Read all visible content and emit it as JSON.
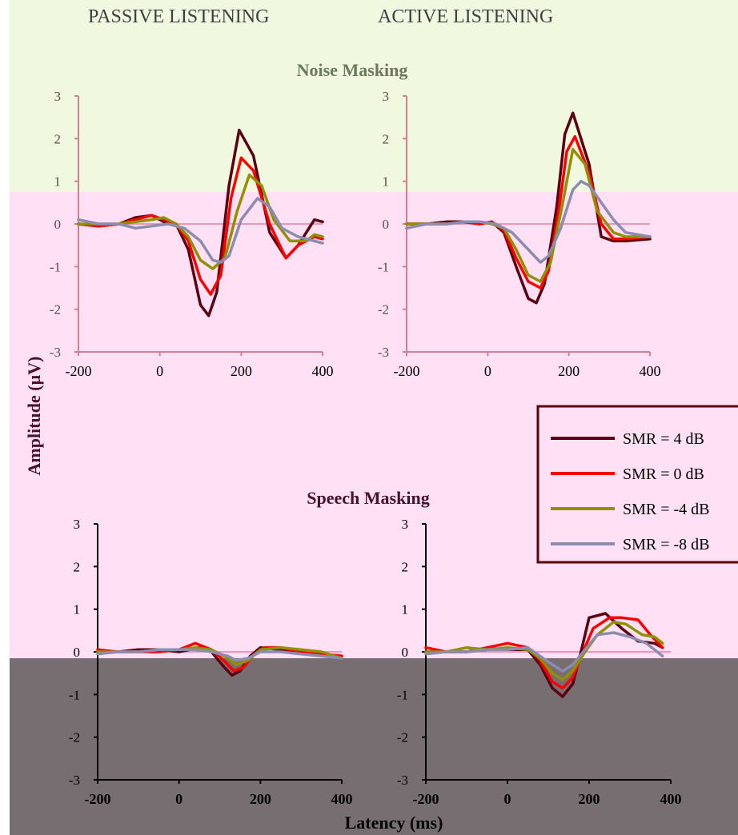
{
  "headers": {
    "passive": "PASSIVE LISTENING",
    "active": "ACTIVE LISTENING"
  },
  "axis": {
    "ylabel": "Amplitude (µV)",
    "xlabel": "Latency (ms)"
  },
  "colors": {
    "band_top": "#f0f8e0",
    "band_mid": "#ffe0f4",
    "band_bottom": "#776e72",
    "zero_line": "#e080a0"
  },
  "legend": {
    "entries": [
      {
        "label": "SMR = 4 dB",
        "color": "#5a0010"
      },
      {
        "label": "SMR = 0 dB",
        "color": "#ff0000"
      },
      {
        "label": "SMR = -4 dB",
        "color": "#909000"
      },
      {
        "label": "SMR = -8 dB",
        "color": "#8c8cb0"
      }
    ]
  },
  "chart_data": [
    {
      "type": "line",
      "title": "Noise Masking",
      "panel": "PASSIVE LISTENING",
      "xlim": [
        -200,
        400
      ],
      "ylim": [
        -3,
        3
      ],
      "xticks": [
        -200,
        0,
        200,
        400
      ],
      "yticks": [
        -3,
        -2,
        -1,
        0,
        1,
        2,
        3
      ],
      "series": [
        {
          "name": "SMR = 4 dB",
          "color": "#5a0010",
          "x": [
            -200,
            -150,
            -100,
            -60,
            -20,
            10,
            40,
            70,
            100,
            120,
            140,
            170,
            195,
            230,
            270,
            310,
            340,
            380,
            400
          ],
          "y": [
            0,
            -0.05,
            0,
            0.15,
            0.2,
            0.05,
            0,
            -0.6,
            -1.9,
            -2.15,
            -1.6,
            0.9,
            2.2,
            1.6,
            -0.2,
            -0.8,
            -0.5,
            0.1,
            0.05
          ]
        },
        {
          "name": "SMR = 0 dB",
          "color": "#ff0000",
          "x": [
            -200,
            -150,
            -100,
            -60,
            -20,
            10,
            40,
            70,
            100,
            125,
            150,
            175,
            200,
            230,
            270,
            310,
            340,
            380,
            400
          ],
          "y": [
            0,
            -0.05,
            0,
            0.1,
            0.2,
            0.1,
            0,
            -0.4,
            -1.3,
            -1.65,
            -1.2,
            0.6,
            1.55,
            1.25,
            0,
            -0.8,
            -0.5,
            -0.3,
            -0.35
          ]
        },
        {
          "name": "SMR = -4 dB",
          "color": "#909000",
          "x": [
            -200,
            -150,
            -100,
            -60,
            -20,
            10,
            40,
            70,
            100,
            130,
            160,
            190,
            220,
            250,
            280,
            320,
            360,
            380,
            400
          ],
          "y": [
            0,
            0,
            0,
            0.05,
            0.1,
            0.15,
            0,
            -0.3,
            -0.85,
            -1.05,
            -0.8,
            0.3,
            1.15,
            0.9,
            0.1,
            -0.4,
            -0.4,
            -0.25,
            -0.3
          ]
        },
        {
          "name": "SMR = -8 dB",
          "color": "#8c8cb0",
          "x": [
            -200,
            -150,
            -100,
            -60,
            -20,
            20,
            60,
            100,
            130,
            150,
            170,
            200,
            240,
            270,
            300,
            340,
            380,
            400
          ],
          "y": [
            0.1,
            0,
            0,
            -0.1,
            -0.05,
            0,
            -0.1,
            -0.4,
            -0.85,
            -0.9,
            -0.75,
            0.1,
            0.6,
            0.4,
            -0.1,
            -0.3,
            -0.4,
            -0.45
          ]
        }
      ]
    },
    {
      "type": "line",
      "title": "Noise Masking",
      "panel": "ACTIVE LISTENING",
      "xlim": [
        -200,
        400
      ],
      "ylim": [
        -3,
        3
      ],
      "xticks": [
        -200,
        0,
        200,
        400
      ],
      "yticks": [
        -3,
        -2,
        -1,
        0,
        1,
        2,
        3
      ],
      "series": [
        {
          "name": "SMR = 4 dB",
          "color": "#5a0010",
          "x": [
            -200,
            -150,
            -100,
            -60,
            -20,
            10,
            40,
            70,
            100,
            120,
            140,
            170,
            190,
            210,
            250,
            280,
            310,
            340,
            400
          ],
          "y": [
            0,
            0,
            0.05,
            0.05,
            0,
            0.05,
            -0.2,
            -1,
            -1.75,
            -1.85,
            -1.4,
            0.4,
            2.1,
            2.6,
            1.4,
            -0.3,
            -0.4,
            -0.4,
            -0.35
          ]
        },
        {
          "name": "SMR = 0 dB",
          "color": "#ff0000",
          "x": [
            -200,
            -150,
            -100,
            -60,
            -20,
            10,
            40,
            70,
            100,
            130,
            150,
            175,
            195,
            215,
            250,
            280,
            310,
            340,
            400
          ],
          "y": [
            0,
            0,
            0,
            0.05,
            0,
            0.05,
            -0.15,
            -0.8,
            -1.35,
            -1.5,
            -1.1,
            0.3,
            1.7,
            2.05,
            1.2,
            0,
            -0.35,
            -0.35,
            -0.3
          ]
        },
        {
          "name": "SMR = -4 dB",
          "color": "#909000",
          "x": [
            -200,
            -150,
            -100,
            -60,
            -20,
            10,
            40,
            70,
            100,
            130,
            155,
            185,
            210,
            240,
            270,
            310,
            340,
            400
          ],
          "y": [
            0,
            0,
            0,
            0.05,
            0.05,
            0,
            -0.1,
            -0.6,
            -1.2,
            -1.35,
            -0.9,
            0.5,
            1.75,
            1.4,
            0.3,
            -0.2,
            -0.3,
            -0.3
          ]
        },
        {
          "name": "SMR = -8 dB",
          "color": "#8c8cb0",
          "x": [
            -200,
            -150,
            -100,
            -60,
            -20,
            20,
            60,
            100,
            130,
            150,
            180,
            210,
            230,
            250,
            280,
            310,
            340,
            400
          ],
          "y": [
            -0.1,
            0,
            0,
            0.05,
            0.05,
            0,
            -0.2,
            -0.6,
            -0.9,
            -0.75,
            -0.1,
            0.8,
            1.0,
            0.9,
            0.5,
            0.1,
            -0.2,
            -0.3
          ]
        }
      ]
    },
    {
      "type": "line",
      "title": "Speech Masking",
      "panel": "PASSIVE LISTENING",
      "xlim": [
        -200,
        400
      ],
      "ylim": [
        -3,
        3
      ],
      "xticks": [
        -200,
        0,
        200,
        400
      ],
      "yticks": [
        -3,
        -2,
        -1,
        0,
        1,
        2,
        3
      ],
      "series": [
        {
          "name": "SMR = 4 dB",
          "color": "#5a0010",
          "x": [
            -200,
            -150,
            -100,
            -50,
            0,
            50,
            80,
            110,
            130,
            150,
            175,
            200,
            250,
            300,
            350,
            400
          ],
          "y": [
            0,
            0,
            0.05,
            0.05,
            0,
            0.1,
            0,
            -0.35,
            -0.55,
            -0.45,
            -0.1,
            0.1,
            0.05,
            0,
            -0.05,
            -0.1
          ]
        },
        {
          "name": "SMR = 0 dB",
          "color": "#ff0000",
          "x": [
            -200,
            -150,
            -100,
            -50,
            0,
            40,
            80,
            110,
            135,
            160,
            185,
            210,
            250,
            300,
            350,
            400
          ],
          "y": [
            0.05,
            0,
            0,
            0,
            0.05,
            0.2,
            0.05,
            -0.2,
            -0.45,
            -0.35,
            -0.05,
            0.1,
            0.1,
            0,
            -0.05,
            -0.1
          ]
        },
        {
          "name": "SMR = -4 dB",
          "color": "#909000",
          "x": [
            -200,
            -150,
            -100,
            -50,
            0,
            40,
            80,
            120,
            140,
            170,
            200,
            250,
            300,
            350,
            400
          ],
          "y": [
            0,
            0,
            0,
            0.05,
            0.05,
            0.1,
            0.05,
            -0.15,
            -0.3,
            -0.2,
            0.05,
            0.1,
            0.05,
            0,
            -0.15
          ]
        },
        {
          "name": "SMR = -8 dB",
          "color": "#8c8cb0",
          "x": [
            -200,
            -150,
            -100,
            -50,
            0,
            40,
            80,
            120,
            140,
            170,
            200,
            250,
            300,
            350,
            400
          ],
          "y": [
            -0.05,
            0,
            0,
            0.05,
            0.05,
            0.05,
            0,
            -0.1,
            -0.2,
            -0.15,
            0,
            0,
            -0.05,
            -0.1,
            -0.15
          ]
        }
      ]
    },
    {
      "type": "line",
      "title": "Speech Masking",
      "panel": "ACTIVE LISTENING",
      "xlim": [
        -200,
        400
      ],
      "ylim": [
        -3,
        3
      ],
      "xticks": [
        -200,
        0,
        200,
        400
      ],
      "yticks": [
        -3,
        -2,
        -1,
        0,
        1,
        2,
        3
      ],
      "series": [
        {
          "name": "SMR = 4 dB",
          "color": "#5a0010",
          "x": [
            -200,
            -150,
            -100,
            -50,
            0,
            50,
            80,
            110,
            135,
            160,
            180,
            200,
            240,
            280,
            320,
            360,
            380
          ],
          "y": [
            0,
            0,
            0,
            0.05,
            0.05,
            0.05,
            -0.3,
            -0.85,
            -1.05,
            -0.75,
            0,
            0.8,
            0.9,
            0.55,
            0.25,
            0.2,
            0.1
          ]
        },
        {
          "name": "SMR = 0 dB",
          "color": "#ff0000",
          "x": [
            -200,
            -150,
            -100,
            -50,
            0,
            50,
            80,
            110,
            135,
            160,
            185,
            210,
            250,
            280,
            320,
            350,
            380
          ],
          "y": [
            0.1,
            0,
            0,
            0.1,
            0.2,
            0.1,
            -0.2,
            -0.7,
            -0.85,
            -0.6,
            0,
            0.55,
            0.8,
            0.8,
            0.75,
            0.4,
            0.1
          ]
        },
        {
          "name": "SMR = -4 dB",
          "color": "#909000",
          "x": [
            -200,
            -150,
            -100,
            -50,
            0,
            50,
            80,
            110,
            135,
            160,
            190,
            220,
            260,
            290,
            330,
            360,
            380
          ],
          "y": [
            0,
            0,
            0.1,
            0.05,
            0.1,
            0.05,
            -0.15,
            -0.5,
            -0.65,
            -0.45,
            0,
            0.4,
            0.7,
            0.65,
            0.4,
            0.35,
            0.2
          ]
        },
        {
          "name": "SMR = -8 dB",
          "color": "#8c8cb0",
          "x": [
            -200,
            -150,
            -100,
            -50,
            0,
            50,
            80,
            110,
            135,
            160,
            190,
            220,
            260,
            300,
            340,
            380
          ],
          "y": [
            -0.05,
            0,
            0,
            0.05,
            0.05,
            0.1,
            -0.1,
            -0.3,
            -0.45,
            -0.3,
            0.05,
            0.4,
            0.45,
            0.35,
            0.2,
            -0.1
          ]
        }
      ]
    }
  ]
}
